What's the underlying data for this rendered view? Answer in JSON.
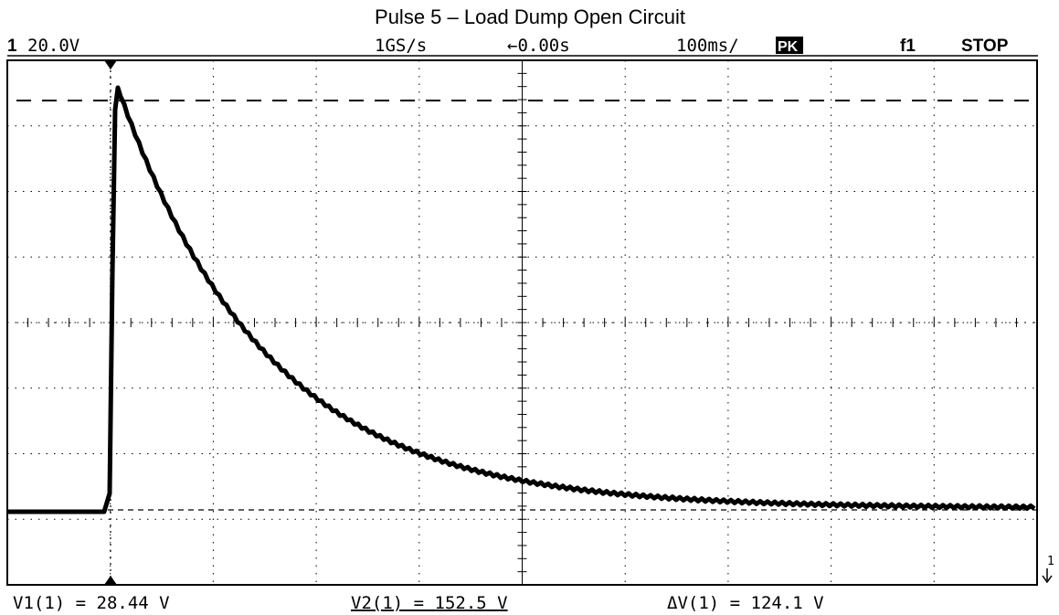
{
  "header": {
    "title": "Pulse 5 – Load Dump Open Circuit"
  },
  "status_bar": {
    "channel": "1",
    "scale": "20.0V",
    "sample_rate": "1GS/s",
    "delay": "←0.00s",
    "timebase": "100ms/",
    "mode": "PK",
    "trigger": "f1",
    "state": "STOP"
  },
  "marker": "1",
  "measurements": [
    "V1(1) = 28.44 V",
    "V2(1) = 152.5 V",
    "ΔV(1) = 124.1 V"
  ]
}
